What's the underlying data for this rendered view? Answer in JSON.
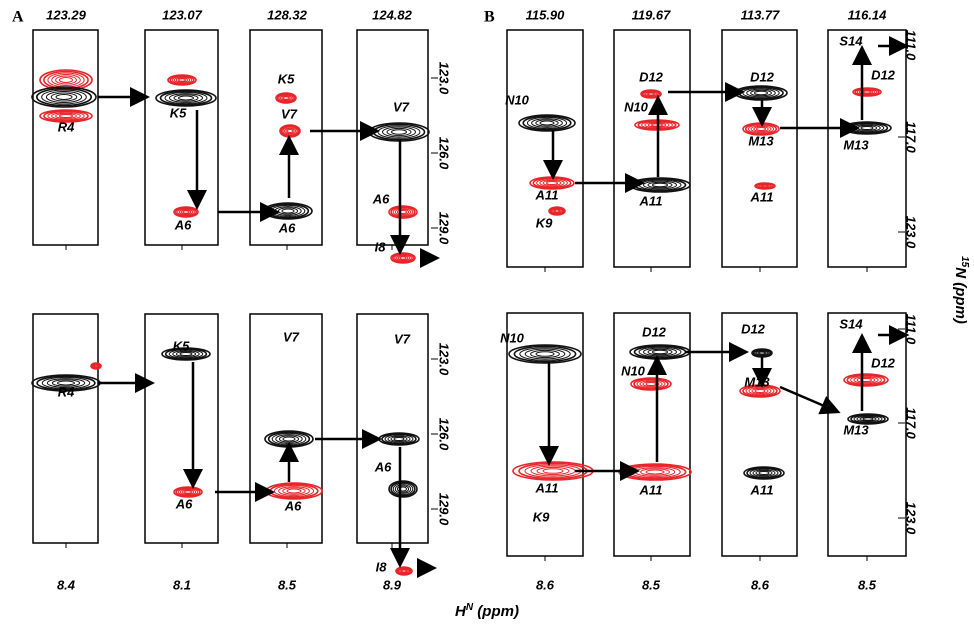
{
  "figure": {
    "panels": [
      {
        "label": "A",
        "strip_titles": [
          "123.29",
          "123.07",
          "128.32",
          "124.82"
        ],
        "h_ticks": [
          "8.4",
          "8.1",
          "8.5",
          "8.9"
        ],
        "rows": [
          {
            "peak_labels": [
              "R4",
              "K5",
              "A6",
              "K5",
              "V7",
              "A6",
              "V7",
              "A6",
              "I8"
            ],
            "n_ticks": [
              "123.0",
              "126.0",
              "129.0"
            ]
          },
          {
            "peak_labels": [
              "R4",
              "K5",
              "A6",
              "V7",
              "A6",
              "V7",
              "A6",
              "I8"
            ],
            "n_ticks": [
              "123.0",
              "126.0",
              "129.0"
            ]
          }
        ]
      },
      {
        "label": "B",
        "strip_titles": [
          "115.90",
          "119.67",
          "113.77",
          "116.14"
        ],
        "h_ticks": [
          "8.6",
          "8.5",
          "8.6",
          "8.5"
        ],
        "rows": [
          {
            "peak_labels": [
              "N10",
              "A11",
              "K9",
              "D12",
              "N10",
              "A11",
              "D12",
              "M13",
              "A11",
              "S14",
              "D12",
              "M13"
            ],
            "n_ticks": [
              "111.0",
              "117.0",
              "123.0"
            ]
          },
          {
            "peak_labels": [
              "N10",
              "A11",
              "K9",
              "D12",
              "N10",
              "A11",
              "D12",
              "M13",
              "A11",
              "S14",
              "D12",
              "M13"
            ],
            "n_ticks": [
              "111.0",
              "117.0",
              "123.0"
            ]
          }
        ]
      }
    ],
    "y_axis_title": {
      "sup": "15",
      "main": "N (ppm)"
    },
    "x_axis_title": {
      "main": "H",
      "sup": "N",
      "tail": " (ppm)"
    }
  }
}
